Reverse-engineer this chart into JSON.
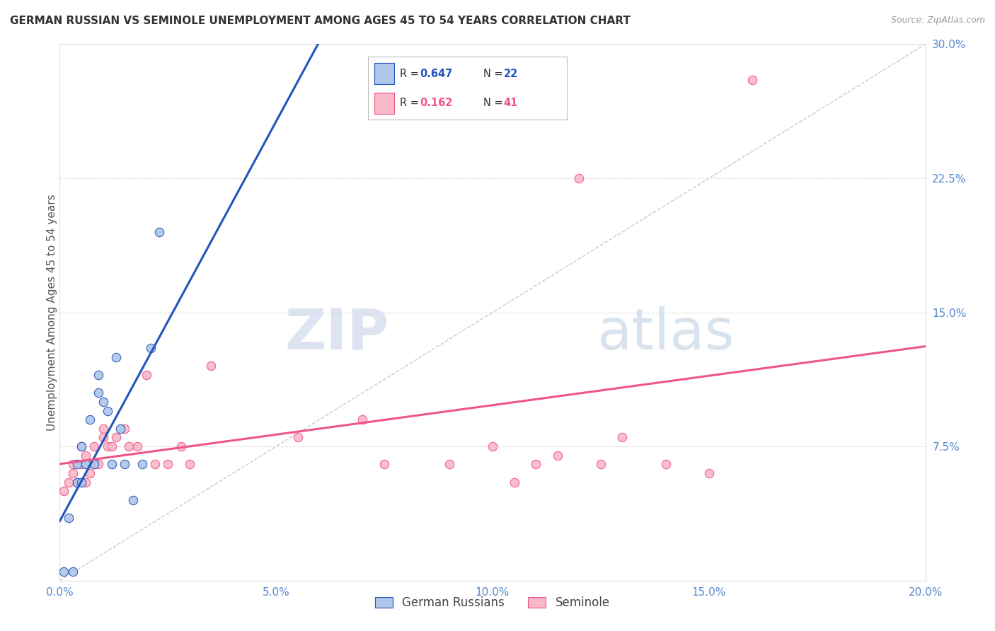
{
  "title": "GERMAN RUSSIAN VS SEMINOLE UNEMPLOYMENT AMONG AGES 45 TO 54 YEARS CORRELATION CHART",
  "source": "Source: ZipAtlas.com",
  "ylabel": "Unemployment Among Ages 45 to 54 years",
  "xlim": [
    0.0,
    0.2
  ],
  "ylim": [
    0.0,
    0.3
  ],
  "xticks": [
    0.0,
    0.025,
    0.05,
    0.075,
    0.1,
    0.125,
    0.15,
    0.175,
    0.2
  ],
  "xticklabels": [
    "0.0%",
    "",
    "5.0%",
    "",
    "10.0%",
    "",
    "15.0%",
    "",
    "20.0%"
  ],
  "yticks": [
    0.0,
    0.075,
    0.15,
    0.225,
    0.3
  ],
  "yticklabels": [
    "",
    "7.5%",
    "15.0%",
    "22.5%",
    "30.0%"
  ],
  "german_russian_x": [
    0.001,
    0.002,
    0.003,
    0.004,
    0.004,
    0.005,
    0.005,
    0.006,
    0.007,
    0.008,
    0.009,
    0.009,
    0.01,
    0.011,
    0.012,
    0.013,
    0.014,
    0.015,
    0.017,
    0.019,
    0.021,
    0.023
  ],
  "german_russian_y": [
    0.005,
    0.035,
    0.005,
    0.055,
    0.065,
    0.055,
    0.075,
    0.065,
    0.09,
    0.065,
    0.115,
    0.105,
    0.1,
    0.095,
    0.065,
    0.125,
    0.085,
    0.065,
    0.045,
    0.065,
    0.13,
    0.195
  ],
  "seminole_x": [
    0.001,
    0.002,
    0.003,
    0.003,
    0.004,
    0.005,
    0.005,
    0.006,
    0.006,
    0.007,
    0.008,
    0.008,
    0.009,
    0.01,
    0.01,
    0.011,
    0.012,
    0.013,
    0.015,
    0.016,
    0.018,
    0.02,
    0.022,
    0.025,
    0.028,
    0.03,
    0.035,
    0.055,
    0.07,
    0.075,
    0.09,
    0.1,
    0.105,
    0.11,
    0.115,
    0.12,
    0.125,
    0.13,
    0.14,
    0.15,
    0.16
  ],
  "seminole_y": [
    0.05,
    0.055,
    0.06,
    0.065,
    0.055,
    0.065,
    0.075,
    0.055,
    0.07,
    0.06,
    0.075,
    0.065,
    0.065,
    0.08,
    0.085,
    0.075,
    0.075,
    0.08,
    0.085,
    0.075,
    0.075,
    0.115,
    0.065,
    0.065,
    0.075,
    0.065,
    0.12,
    0.08,
    0.09,
    0.065,
    0.065,
    0.075,
    0.055,
    0.065,
    0.07,
    0.225,
    0.065,
    0.08,
    0.065,
    0.06,
    0.28
  ],
  "blue_color": "#AEC6E8",
  "pink_color": "#F9B8C8",
  "blue_line_color": "#2255BB",
  "pink_line_color": "#EE5588",
  "legend_r1": "0.647",
  "legend_n1": "22",
  "legend_r2": "0.162",
  "legend_n2": "41",
  "legend_label1": "German Russians",
  "legend_label2": "Seminole",
  "watermark_zip": "ZIP",
  "watermark_atlas": "atlas",
  "marker_size": 80,
  "grid_color": "#DDDDDD",
  "axis_tick_color": "#5588CC",
  "title_color": "#333333",
  "ylabel_color": "#555555"
}
